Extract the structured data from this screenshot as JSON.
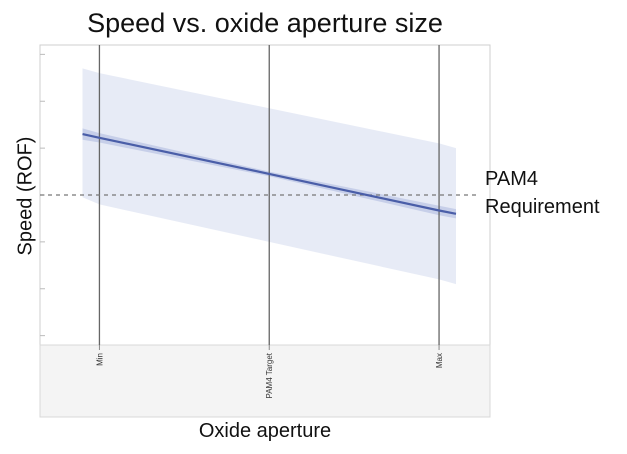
{
  "chart_data": {
    "type": "line",
    "title": "Speed vs. oxide aperture size",
    "xlabel": "Oxide aperture",
    "ylabel": "Speed (ROF)",
    "categories": [
      "Min",
      "PAM4 Target",
      "Max"
    ],
    "x": [
      -0.1,
      0,
      1,
      2,
      2.1
    ],
    "series": [
      {
        "values": [
          1.3,
          1.22,
          0.45,
          -0.33,
          -0.4
        ],
        "ci_lower": [
          1.18,
          1.12,
          0.4,
          -0.43,
          -0.5
        ],
        "ci_upper": [
          1.42,
          1.32,
          0.5,
          -0.23,
          -0.3
        ],
        "band_lower": [
          -0.05,
          -0.2,
          -1.0,
          -1.8,
          -1.9
        ],
        "band_upper": [
          2.7,
          2.6,
          1.85,
          1.1,
          1.0
        ],
        "color": "#4a5ea8"
      }
    ],
    "reference_line": {
      "y": 0,
      "label_line1": "PAM4",
      "label_line2": "Requirement"
    },
    "xlim": [
      -0.35,
      2.3
    ],
    "ylim": [
      -3.2,
      3.2
    ],
    "grid": false
  }
}
